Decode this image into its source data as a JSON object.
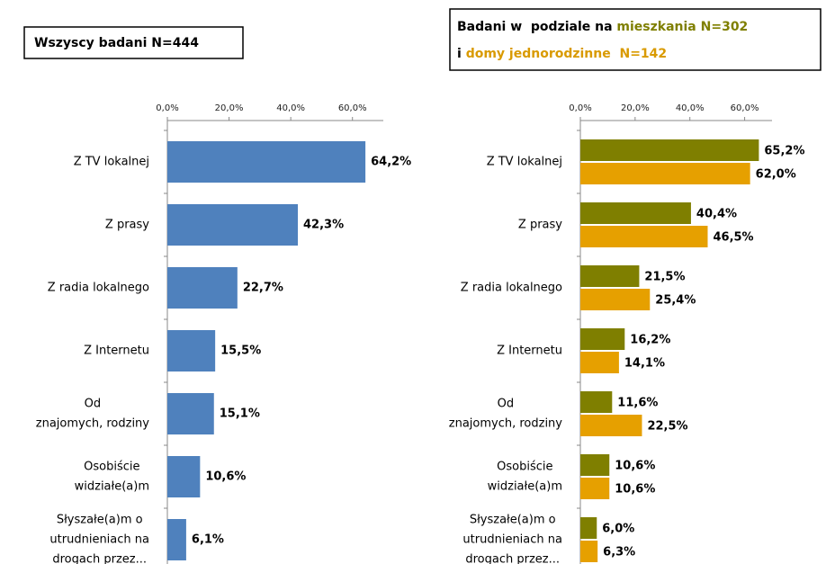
{
  "chart_data": [
    {
      "type": "bar",
      "orientation": "horizontal",
      "title": "Wszyscy badani N=444",
      "categories": [
        [
          "Z TV lokalnej"
        ],
        [
          "Z prasy"
        ],
        [
          "Z radia lokalnego"
        ],
        [
          "Z Internetu"
        ],
        [
          "Od",
          "znajomych, rodziny"
        ],
        [
          "Osobiście",
          "widziałe(a)m"
        ],
        [
          "Słyszałe(a)m o",
          "utrudnieniach na",
          "drogach przez..."
        ]
      ],
      "series": [
        {
          "color": "#4f81bd",
          "label_color": "#4f81bd",
          "values": [
            64.2,
            42.3,
            22.7,
            15.5,
            15.1,
            10.6,
            6.1
          ],
          "value_labels": [
            "64,2%",
            "42,3%",
            "22,7%",
            "15,5%",
            "15,1%",
            "10,6%",
            "6,1%"
          ]
        }
      ],
      "xlim": [
        0,
        70
      ],
      "xticks": [
        {
          "value": 0,
          "label": "0,0%"
        },
        {
          "value": 20,
          "label": "20,0%"
        },
        {
          "value": 40,
          "label": "40,0%"
        },
        {
          "value": 60,
          "label": "60,0%"
        }
      ]
    },
    {
      "type": "bar",
      "orientation": "horizontal",
      "title_parts": [
        "Badani w  podziale na ",
        "i "
      ],
      "categories": [
        [
          "Z TV lokalnej"
        ],
        [
          "Z prasy"
        ],
        [
          "Z radia lokalnego"
        ],
        [
          "Z Internetu"
        ],
        [
          "Od",
          "znajomych, rodziny"
        ],
        [
          "Osobiście",
          "widziałe(a)m"
        ],
        [
          "Słyszałe(a)m o",
          "utrudnieniach na",
          "drogach przez..."
        ]
      ],
      "series": [
        {
          "name": "mieszkania N=302",
          "color": "#7f7f00",
          "label_color": "#7f7f00",
          "values": [
            65.2,
            40.4,
            21.5,
            16.2,
            11.6,
            10.6,
            6.0
          ],
          "value_labels": [
            "65,2%",
            "40,4%",
            "21,5%",
            "16,2%",
            "11,6%",
            "10,6%",
            "6,0%"
          ]
        },
        {
          "name": "domy jednorodzinne  N=142",
          "color": "#e6a000",
          "label_color": "#c98a10",
          "values": [
            62.0,
            46.5,
            25.4,
            14.1,
            22.5,
            10.6,
            6.3
          ],
          "value_labels": [
            "62,0%",
            "46,5%",
            "25,4%",
            "14,1%",
            "22,5%",
            "10,6%",
            "6,3%"
          ]
        }
      ],
      "xlim": [
        0,
        70
      ],
      "xticks": [
        {
          "value": 0,
          "label": "0,0%"
        },
        {
          "value": 20,
          "label": "20,0%"
        },
        {
          "value": 40,
          "label": "40,0%"
        },
        {
          "value": 60,
          "label": "60,0%"
        }
      ]
    }
  ]
}
